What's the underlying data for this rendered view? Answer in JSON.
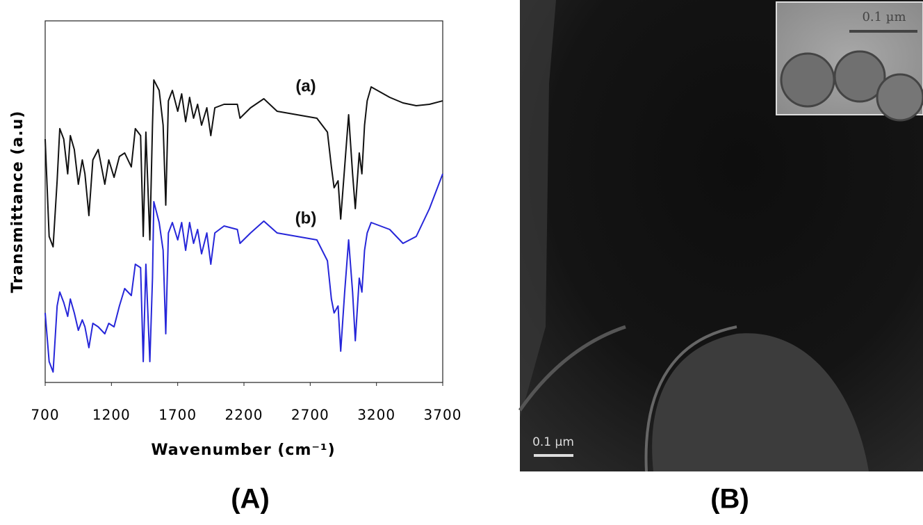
{
  "chart_data": {
    "type": "line",
    "x_label": "Wavenumber (cm⁻¹)",
    "y_label": "Transmittance (a.u)",
    "xlim": [
      700,
      3700
    ],
    "xticks": [
      700,
      1200,
      1700,
      2200,
      2700,
      3200,
      3700
    ],
    "ylim": [
      0,
      520
    ],
    "x": [
      700,
      730,
      760,
      790,
      810,
      840,
      870,
      890,
      920,
      950,
      980,
      1000,
      1030,
      1060,
      1100,
      1150,
      1180,
      1220,
      1260,
      1300,
      1350,
      1380,
      1420,
      1440,
      1460,
      1490,
      1510,
      1520,
      1560,
      1590,
      1610,
      1630,
      1660,
      1700,
      1730,
      1760,
      1790,
      1820,
      1850,
      1880,
      1920,
      1950,
      1980,
      2050,
      2150,
      2170,
      2250,
      2350,
      2450,
      2600,
      2750,
      2830,
      2860,
      2880,
      2910,
      2930,
      2960,
      2990,
      3020,
      3040,
      3070,
      3090,
      3110,
      3130,
      3160,
      3300,
      3400,
      3500,
      3600,
      3700
    ],
    "series": [
      {
        "name": "(a)",
        "color": "#111111",
        "values": [
          350,
          210,
          195,
          290,
          365,
          350,
          300,
          355,
          335,
          285,
          320,
          300,
          240,
          320,
          335,
          285,
          320,
          295,
          325,
          330,
          310,
          365,
          355,
          210,
          360,
          205,
          370,
          435,
          420,
          370,
          255,
          405,
          420,
          390,
          415,
          375,
          410,
          380,
          400,
          370,
          395,
          355,
          395,
          400,
          400,
          380,
          395,
          408,
          390,
          385,
          380,
          360,
          310,
          280,
          290,
          235,
          310,
          385,
          300,
          250,
          330,
          300,
          370,
          405,
          425,
          410,
          402,
          398,
          400,
          405
        ]
      },
      {
        "name": "(b)",
        "color": "#2626d9",
        "values": [
          100,
          30,
          15,
          110,
          130,
          115,
          95,
          120,
          100,
          75,
          90,
          80,
          50,
          85,
          80,
          70,
          85,
          80,
          110,
          135,
          125,
          170,
          165,
          30,
          170,
          30,
          150,
          260,
          230,
          190,
          70,
          215,
          230,
          205,
          230,
          190,
          230,
          200,
          220,
          185,
          215,
          170,
          215,
          225,
          220,
          200,
          215,
          232,
          215,
          210,
          205,
          175,
          120,
          100,
          110,
          45,
          130,
          205,
          130,
          60,
          150,
          130,
          190,
          215,
          230,
          220,
          200,
          210,
          250,
          300
        ]
      }
    ]
  },
  "panel_labels": [
    "(A)",
    "(B)"
  ],
  "image": {
    "scale_bar": "0.1 µm",
    "inset_scale_bar": "0.1 µm"
  }
}
